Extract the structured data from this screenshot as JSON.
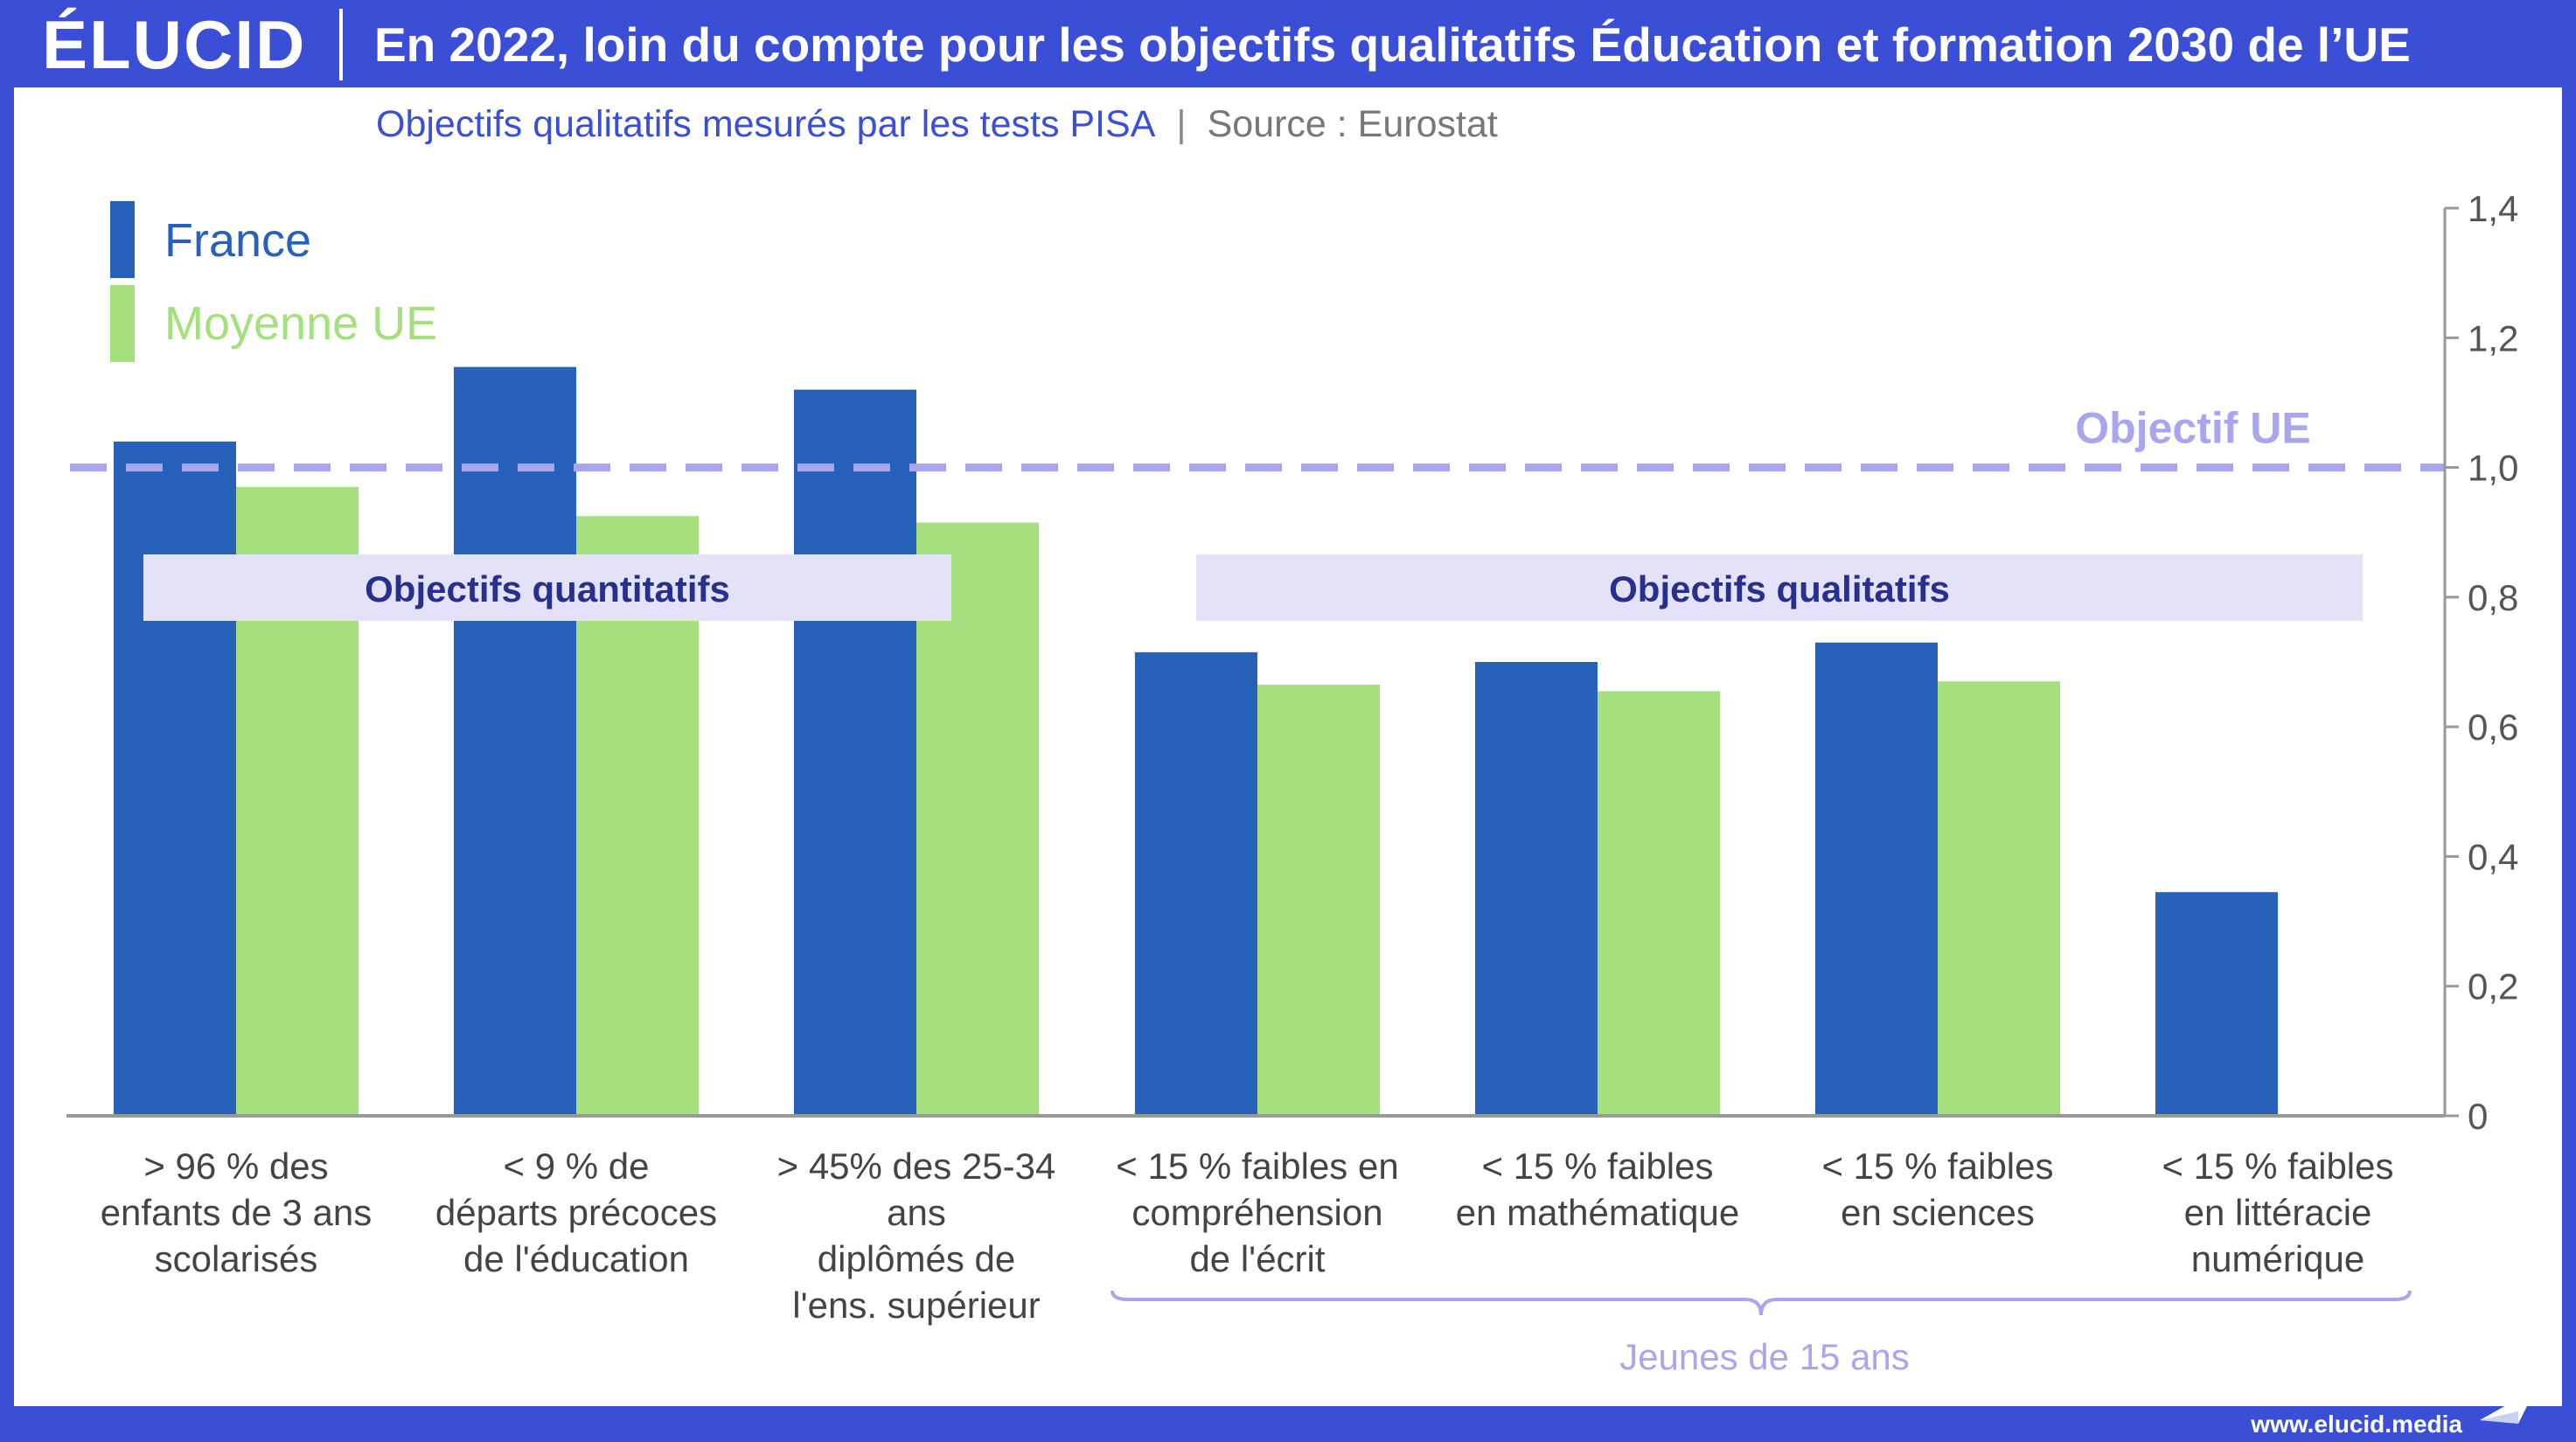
{
  "brand": {
    "logo": "ÉLUCID",
    "url": "www.elucid.media"
  },
  "header": {
    "title": "En 2022, loin du compte pour les objectifs qualitatifs Éducation et formation 2030 de l’UE"
  },
  "subtitle": {
    "text": "Objectifs qualitatifs mesurés par les tests PISA",
    "separator": "|",
    "source": "Source : Eurostat"
  },
  "colors": {
    "france": "#2761b9",
    "eu": "#a6e07e",
    "target": "#a9a6ee",
    "group_band": "#e3e2f8",
    "group_text": "#27308f",
    "axis": "#999999",
    "frame": "#3a4fd6"
  },
  "chart_data": {
    "type": "bar",
    "categories": [
      "> 96 % des enfants de 3 ans scolarisés",
      "< 9 % de départs précoces de l'éducation",
      "> 45% des 25-34 ans diplômés de l'ens. supérieur",
      "< 15 % faibles en compréhension de l'écrit",
      "< 15 % faibles en mathématique",
      "< 15 % faibles en sciences",
      "< 15 % faibles en littéracie numérique"
    ],
    "category_lines": [
      [
        "> 96 % des",
        "enfants de 3 ans",
        "scolarisés"
      ],
      [
        "< 9 % de",
        "départs précoces",
        "de l'éducation"
      ],
      [
        "> 45% des 25-34",
        "ans",
        "diplômés de",
        "l'ens. supérieur"
      ],
      [
        "< 15 % faibles en",
        "compréhension",
        "de l'écrit"
      ],
      [
        "< 15 % faibles",
        "en mathématique"
      ],
      [
        "< 15 % faibles",
        "en sciences"
      ],
      [
        "< 15 % faibles",
        "en littéracie",
        "numérique"
      ]
    ],
    "series": [
      {
        "name": "France",
        "values": [
          1.04,
          1.155,
          1.12,
          0.715,
          0.7,
          0.73,
          0.345
        ]
      },
      {
        "name": "Moyenne UE",
        "values": [
          0.97,
          0.925,
          0.915,
          0.665,
          0.655,
          0.67,
          null
        ]
      }
    ],
    "ylim": [
      0,
      1.4
    ],
    "yticks": [
      0,
      0.2,
      0.4,
      0.6,
      0.8,
      1.0,
      1.2,
      1.4
    ],
    "ytick_labels": [
      "0",
      "0,2",
      "0,4",
      "0,6",
      "0,8",
      "1,0",
      "1,2",
      "1,4"
    ],
    "target": {
      "value": 1.0,
      "label": "Objectif UE"
    },
    "groups": [
      {
        "label": "Objectifs quantitatifs",
        "from": 0,
        "to": 2
      },
      {
        "label": "Objectifs qualitatifs",
        "from": 3,
        "to": 6
      }
    ],
    "bracket": {
      "label": "Jeunes de 15 ans",
      "from": 3,
      "to": 6
    },
    "legend_position": "top-left",
    "y_axis_position": "right"
  }
}
